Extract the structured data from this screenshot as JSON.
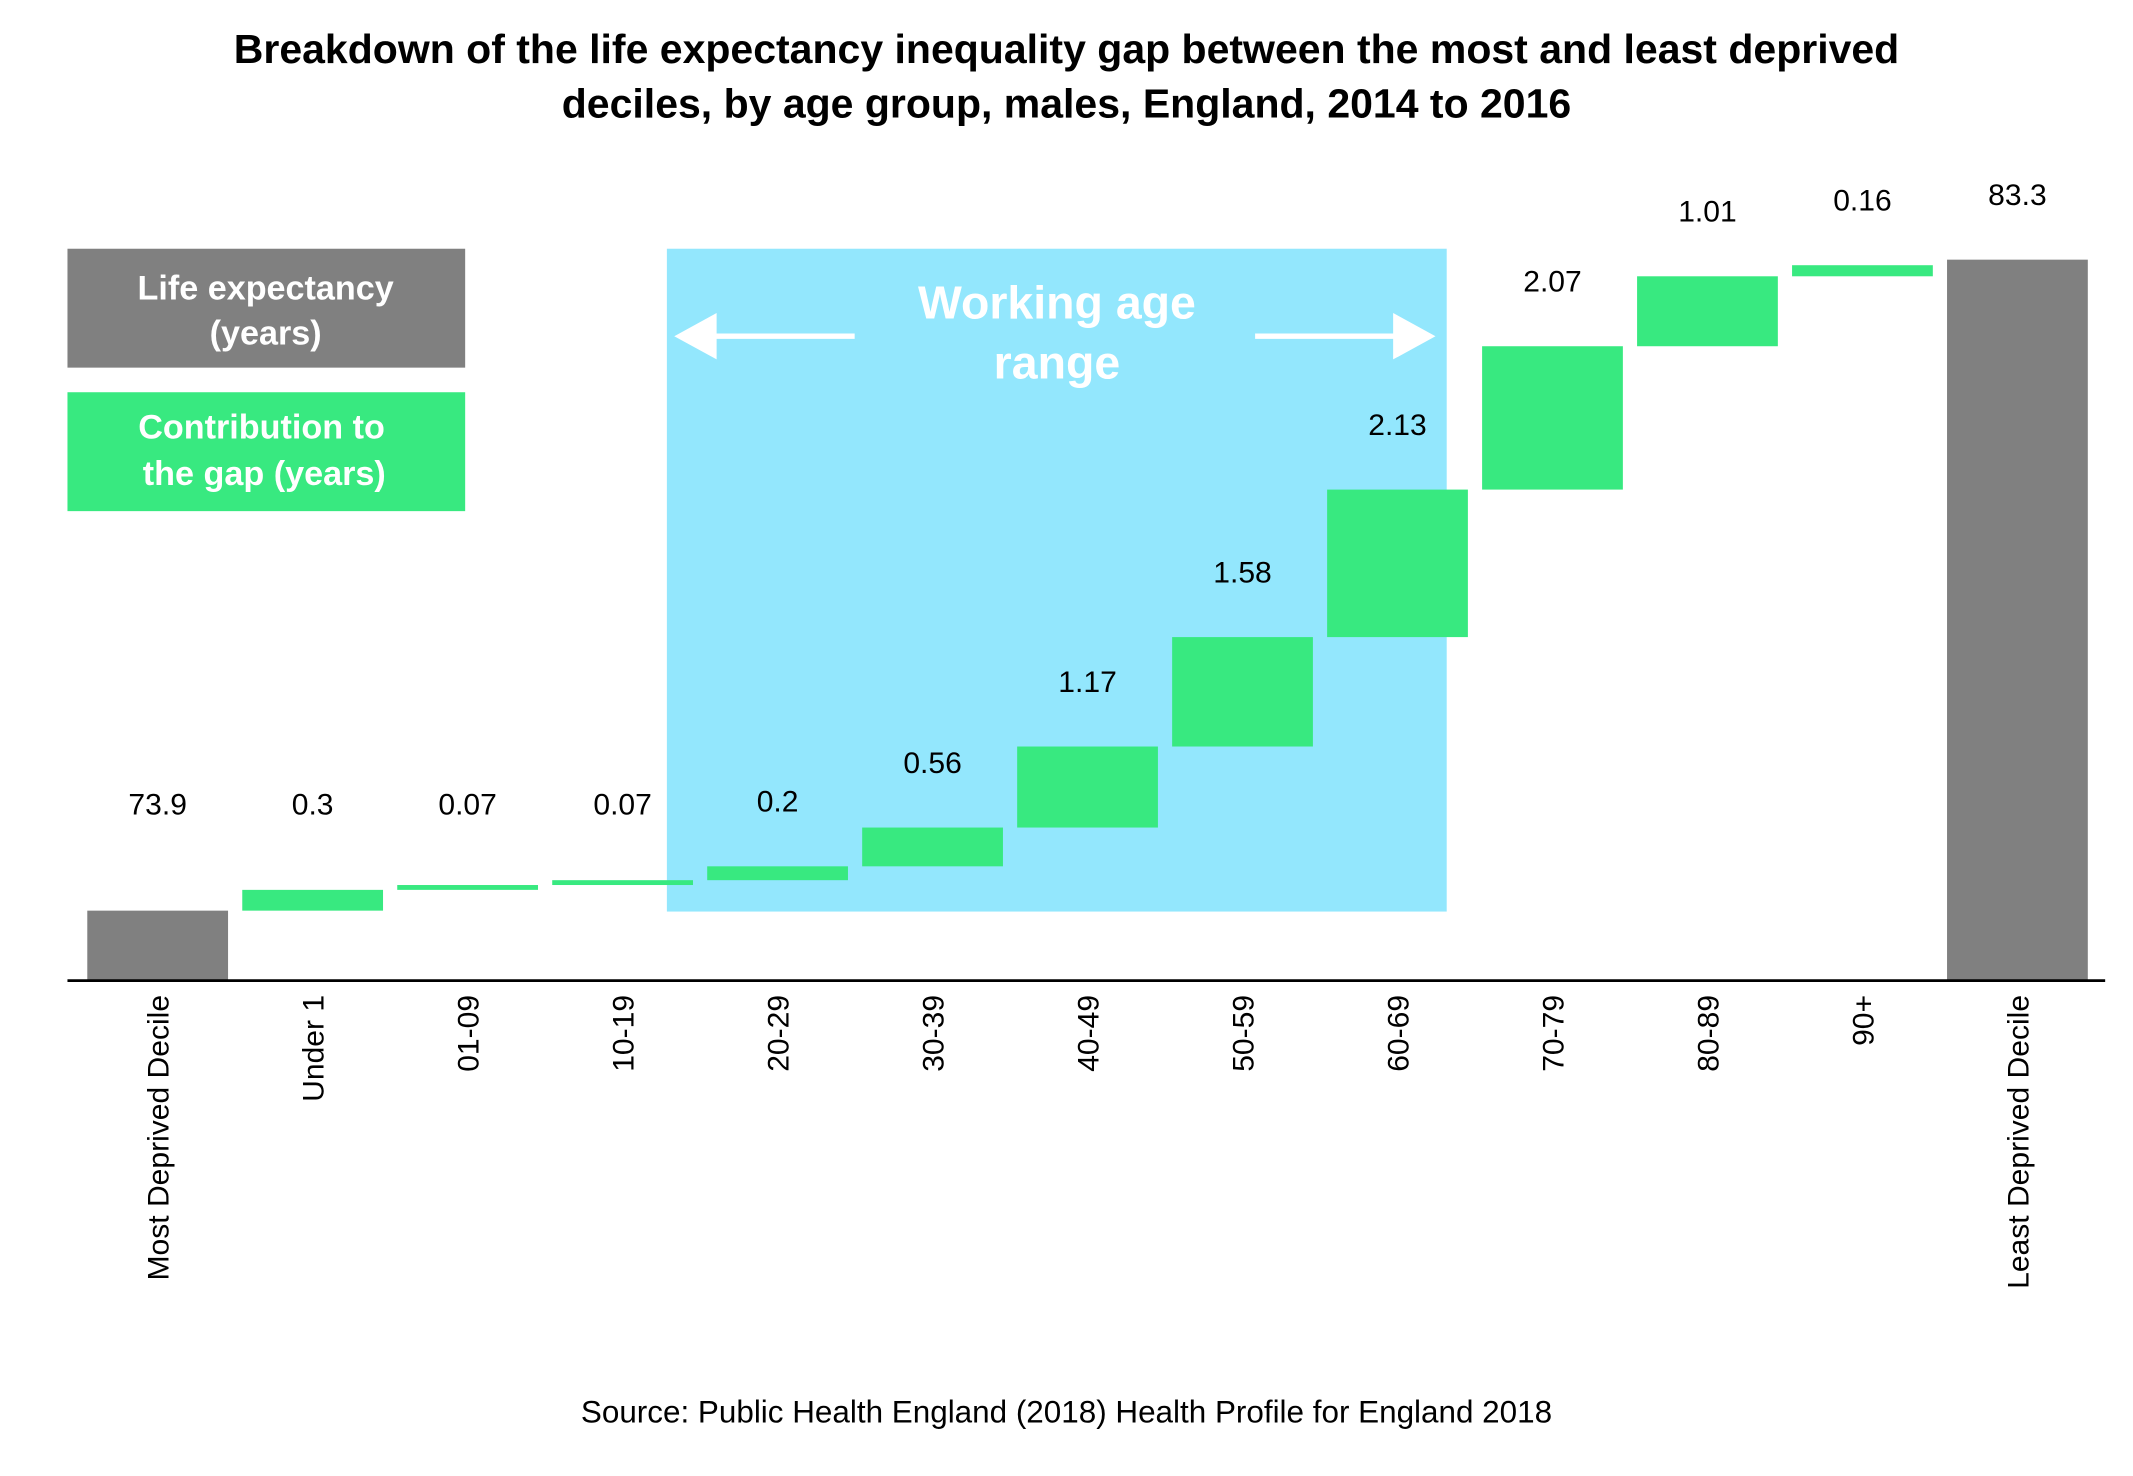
{
  "chart_data": {
    "type": "bar",
    "subtype": "waterfall",
    "title": "Breakdown of the life expectancy inequality gap between the most and least deprived deciles, by age group, males, England, 2014 to 2016",
    "title_lines": [
      "Breakdown of the life expectancy inequality gap between the most and least deprived",
      "deciles, by age group, males, England, 2014 to 2016"
    ],
    "categories": [
      "Most Deprived Decile",
      "Under 1",
      "01-09",
      "10-19",
      "20-29",
      "30-39",
      "40-49",
      "50-59",
      "60-69",
      "70-79",
      "80-89",
      "90+",
      "Least Deprived Decile"
    ],
    "values": [
      73.9,
      0.3,
      0.07,
      0.07,
      0.2,
      0.56,
      1.17,
      1.58,
      2.13,
      2.07,
      1.01,
      0.16,
      83.3
    ],
    "data_labels": [
      "73.9",
      "0.3",
      "0.07",
      "0.07",
      "0.2",
      "0.56",
      "1.17",
      "1.58",
      "2.13",
      "2.07",
      "1.01",
      "0.16",
      "83.3"
    ],
    "bar_kinds": [
      "total",
      "step",
      "step",
      "step",
      "step",
      "step",
      "step",
      "step",
      "step",
      "step",
      "step",
      "step",
      "total"
    ],
    "legend": [
      {
        "label_lines": [
          "Life expectancy",
          "(years)"
        ],
        "color": "#808080"
      },
      {
        "label_lines": [
          "Contribution to",
          "the gap (years)"
        ],
        "color": "#38e980"
      }
    ],
    "legend_placement": "top-left",
    "annotation": {
      "label_lines": [
        "Working age",
        "range"
      ],
      "range": [
        "20-29",
        "60-69"
      ],
      "color": "#93e7fd"
    },
    "ylim": [
      72.9,
      83.3
    ],
    "y_axis_visible": false,
    "grid": false,
    "colors": {
      "total": "#808080",
      "step": "#38e980"
    },
    "source": "Source: Public Health England (2018) Health Profile for England 2018"
  }
}
